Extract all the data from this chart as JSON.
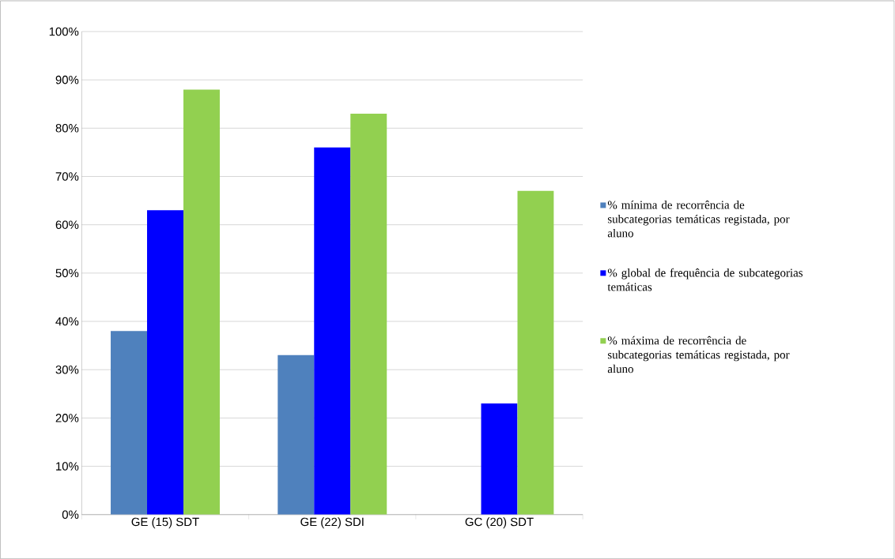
{
  "chart_data": {
    "type": "bar",
    "categories": [
      "GE (15) SDT",
      "GE (22) SDI",
      "GC (20) SDT"
    ],
    "series": [
      {
        "name": "% mínima de recorrência de subcategorias temáticas registada, por aluno",
        "color": "#4f81bd",
        "values": [
          38,
          33,
          0
        ]
      },
      {
        "name": "% global de frequência de subcategorias temáticas",
        "color": "#0000ff",
        "values": [
          63,
          76,
          23
        ]
      },
      {
        "name": "% máxima de recorrência de subcategorias temáticas registada, por aluno",
        "color": "#92d050",
        "values": [
          88,
          83,
          67
        ]
      }
    ],
    "ylim": [
      0,
      100
    ],
    "yticks": [
      {
        "value": 0,
        "label": "0%"
      },
      {
        "value": 10,
        "label": "10%"
      },
      {
        "value": 20,
        "label": "20%"
      },
      {
        "value": 30,
        "label": "30%"
      },
      {
        "value": 40,
        "label": "40%"
      },
      {
        "value": 50,
        "label": "50%"
      },
      {
        "value": 60,
        "label": "60%"
      },
      {
        "value": 70,
        "label": "70%"
      },
      {
        "value": 80,
        "label": "80%"
      },
      {
        "value": 90,
        "label": "90%"
      },
      {
        "value": 100,
        "label": "100%"
      }
    ],
    "grid": "y",
    "legend": "right"
  }
}
